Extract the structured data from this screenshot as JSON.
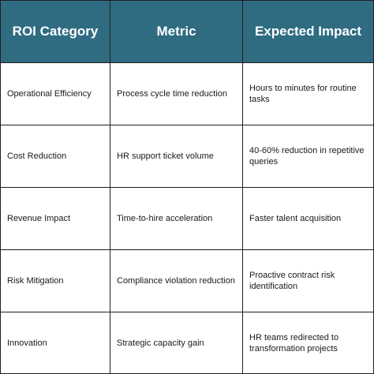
{
  "table": {
    "headers": [
      "ROI Category",
      "Metric",
      "Expected Impact"
    ],
    "rows": [
      [
        "Operational Efficiency",
        "Process cycle time reduction",
        "Hours to minutes for routine tasks"
      ],
      [
        "Cost Reduction",
        "HR support ticket volume",
        "40-60% reduction in repetitive queries"
      ],
      [
        "Revenue Impact",
        "Time-to-hire acceleration",
        "Faster talent acquisition"
      ],
      [
        "Risk Mitigation",
        "Compliance violation reduction",
        "Proactive contract risk identification"
      ],
      [
        "Innovation",
        "Strategic capacity gain",
        "HR teams redirected to transformation projects"
      ]
    ]
  },
  "colors": {
    "header_background": "#2f6c82",
    "header_text": "#ffffff",
    "border": "#1f1f1f",
    "body_text": "#1a1a1a"
  }
}
